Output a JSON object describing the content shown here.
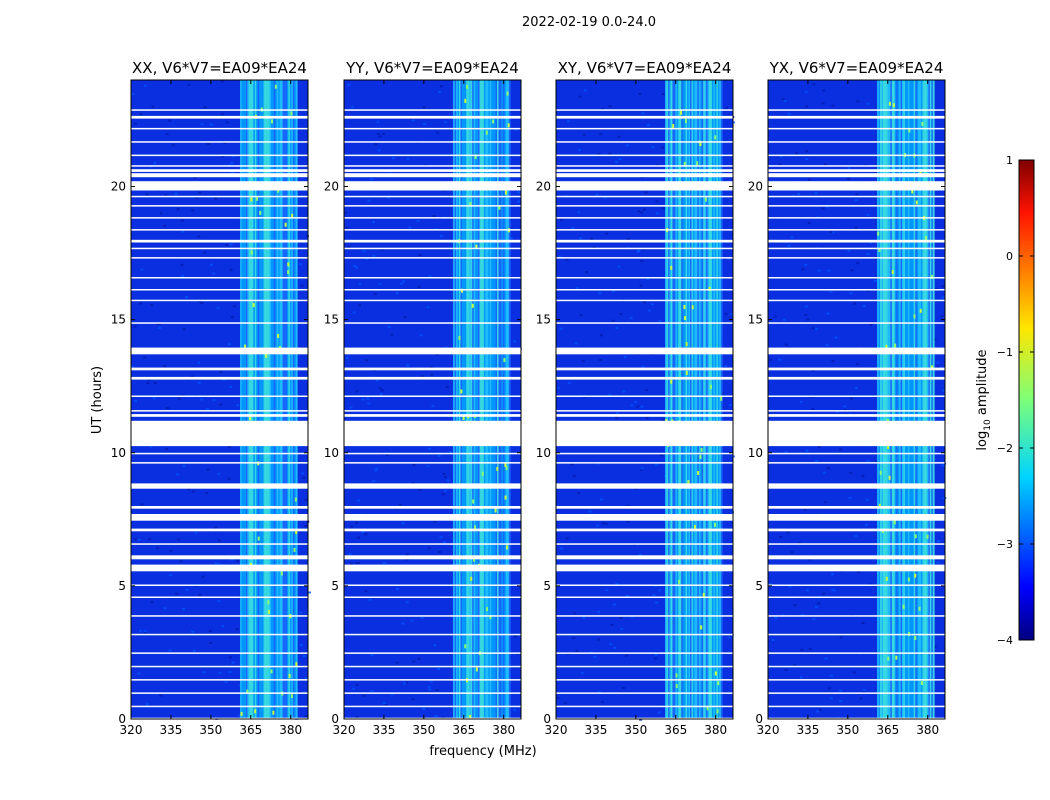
{
  "chart_data": {
    "type": "heatmap",
    "suptitle": "2022-02-19 0.0-24.0",
    "panels": [
      {
        "title": "XX, V6*V7=EA09*EA24",
        "pol": "XX"
      },
      {
        "title": "YY, V6*V7=EA09*EA24",
        "pol": "YY"
      },
      {
        "title": "XY, V6*V7=EA09*EA24",
        "pol": "XY"
      },
      {
        "title": "YX, V6*V7=EA09*EA24",
        "pol": "YX"
      }
    ],
    "xlabel": "frequency (MHz)",
    "ylabel": "UT (hours)",
    "xlim": [
      320,
      386.5
    ],
    "ylim": [
      0,
      24
    ],
    "xticks": [
      320,
      335,
      350,
      365,
      380
    ],
    "yticks": [
      0,
      5,
      10,
      15,
      20
    ],
    "colorbar": {
      "label": "log₁₀ amplitude",
      "label_base": "log",
      "label_sub": "10",
      "label_rest": " amplitude",
      "min": -4,
      "max": 1,
      "ticks": [
        -4,
        -3,
        -2,
        -1,
        0,
        1
      ],
      "tick_labels": [
        "−4",
        "−3",
        "−2",
        "−1",
        "0",
        "1"
      ],
      "colormap": "jet"
    },
    "band": {
      "low_mhz": 361,
      "high_mhz": 382,
      "description": "elevated amplitude"
    },
    "flagged_hours": [
      [
        0.0,
        0.05
      ],
      [
        0.45,
        0.5
      ],
      [
        0.95,
        1.0
      ],
      [
        1.45,
        1.5
      ],
      [
        1.95,
        2.0
      ],
      [
        2.45,
        2.5
      ],
      [
        3.15,
        3.2
      ],
      [
        3.85,
        3.9
      ],
      [
        4.55,
        4.6
      ],
      [
        5.0,
        5.05
      ],
      [
        5.55,
        5.8
      ],
      [
        6.0,
        6.15
      ],
      [
        6.55,
        6.6
      ],
      [
        7.05,
        7.15
      ],
      [
        7.45,
        7.7
      ],
      [
        7.9,
        8.0
      ],
      [
        8.65,
        8.85
      ],
      [
        9.6,
        9.65
      ],
      [
        9.95,
        10.0
      ],
      [
        10.25,
        11.2
      ],
      [
        11.35,
        11.45
      ],
      [
        11.55,
        11.6
      ],
      [
        12.1,
        12.15
      ],
      [
        12.75,
        12.85
      ],
      [
        13.1,
        13.2
      ],
      [
        13.7,
        13.95
      ],
      [
        14.85,
        14.9
      ],
      [
        15.7,
        15.75
      ],
      [
        16.1,
        16.15
      ],
      [
        16.55,
        16.6
      ],
      [
        17.3,
        17.35
      ],
      [
        17.65,
        17.7
      ],
      [
        17.9,
        18.0
      ],
      [
        18.35,
        18.4
      ],
      [
        18.8,
        18.85
      ],
      [
        19.25,
        19.3
      ],
      [
        19.6,
        19.65
      ],
      [
        19.85,
        20.2
      ],
      [
        20.35,
        20.5
      ],
      [
        20.55,
        20.65
      ],
      [
        20.75,
        20.8
      ],
      [
        21.15,
        21.2
      ],
      [
        21.65,
        21.7
      ],
      [
        22.15,
        22.2
      ],
      [
        22.55,
        22.65
      ],
      [
        22.85,
        22.9
      ]
    ]
  }
}
